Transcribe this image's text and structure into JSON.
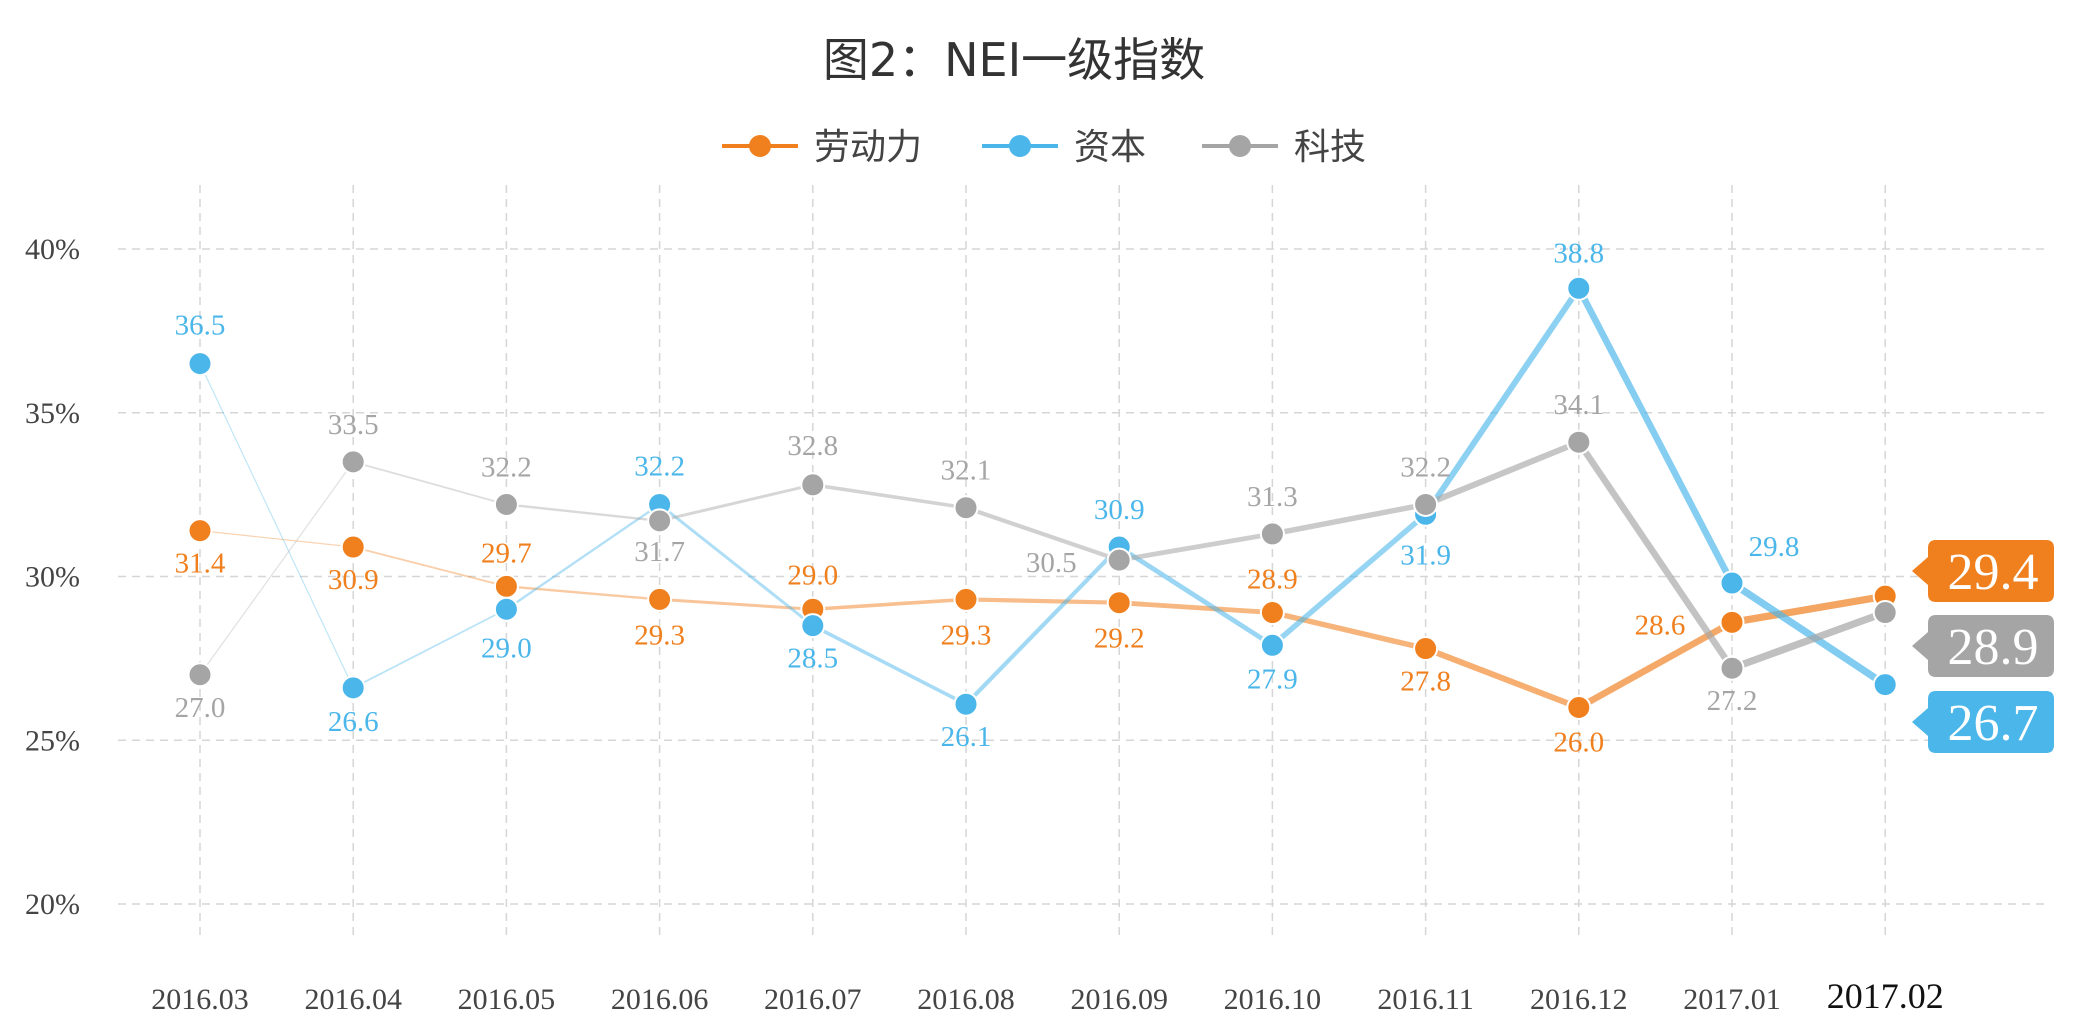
{
  "chart_data": {
    "type": "line",
    "title": "图2：NEI一级指数",
    "xlabel": "",
    "ylabel": "",
    "categories": [
      "2016.03",
      "2016.04",
      "2016.05",
      "2016.06",
      "2016.07",
      "2016.08",
      "2016.09",
      "2016.10",
      "2016.11",
      "2016.12",
      "2017.01",
      "2017.02"
    ],
    "y_ticks": [
      "20%",
      "25%",
      "30%",
      "35%",
      "40%"
    ],
    "ylim": [
      18.5,
      42
    ],
    "grid": true,
    "legend_position": "top",
    "series": [
      {
        "name": "劳动力",
        "color": "#F07F1E",
        "values": [
          31.4,
          30.9,
          29.7,
          29.3,
          29.0,
          29.3,
          29.2,
          28.9,
          27.8,
          26.0,
          28.6,
          29.4
        ],
        "labels": [
          "31.4",
          "30.9",
          "29.7",
          "29.3",
          "29.0",
          "29.3",
          "29.2",
          "28.9",
          "27.8",
          "26.0",
          "28.6",
          ""
        ],
        "end_tag": "29.4"
      },
      {
        "name": "资本",
        "color": "#4BB6EA",
        "values": [
          36.5,
          26.6,
          29.0,
          32.2,
          28.5,
          26.1,
          30.9,
          27.9,
          31.9,
          38.8,
          29.8,
          26.7
        ],
        "labels": [
          "36.5",
          "26.6",
          "29.0",
          "32.2",
          "28.5",
          "26.1",
          "30.9",
          "27.9",
          "31.9",
          "38.8",
          "29.8",
          ""
        ],
        "end_tag": "26.7"
      },
      {
        "name": "科技",
        "color": "#A5A5A5",
        "values": [
          27.0,
          33.5,
          32.2,
          31.7,
          32.8,
          32.1,
          30.5,
          31.3,
          32.2,
          34.1,
          27.2,
          28.9
        ],
        "labels": [
          "27.0",
          "33.5",
          "32.2",
          "31.7",
          "32.8",
          "32.1",
          "30.5",
          "31.3",
          "32.2",
          "34.1",
          "27.2",
          ""
        ],
        "end_tag": "28.9"
      }
    ]
  }
}
